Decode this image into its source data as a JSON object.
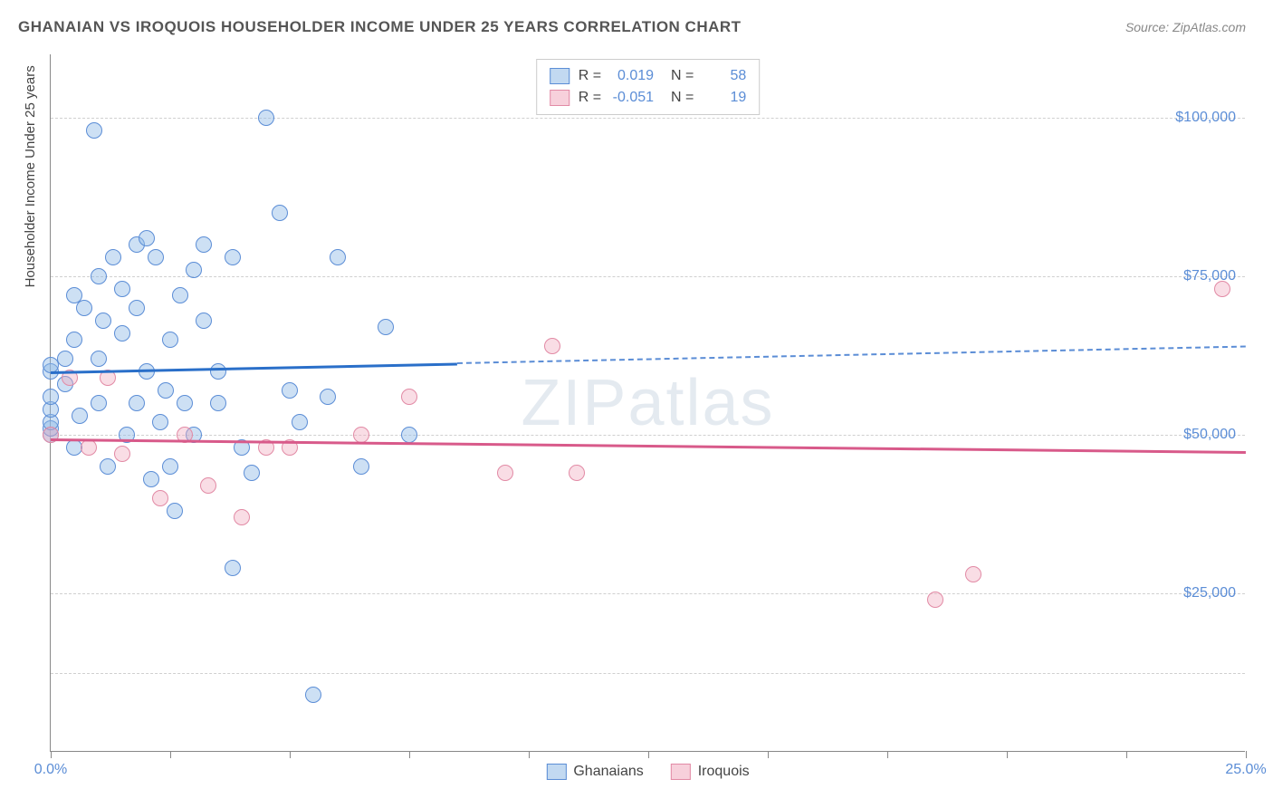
{
  "title": "GHANAIAN VS IROQUOIS HOUSEHOLDER INCOME UNDER 25 YEARS CORRELATION CHART",
  "source": "Source: ZipAtlas.com",
  "watermark": "ZIPatlas",
  "y_axis_title": "Householder Income Under 25 years",
  "chart": {
    "type": "scatter",
    "background_color": "#ffffff",
    "grid_color": "#d0d0d0",
    "axis_color": "#888888",
    "xlim": [
      0,
      25
    ],
    "ylim": [
      0,
      110000
    ],
    "x_ticks": [
      0,
      2.5,
      5,
      7.5,
      10,
      12.5,
      15,
      17.5,
      20,
      22.5,
      25
    ],
    "x_tick_labels": {
      "0": "0.0%",
      "25": "25.0%"
    },
    "y_gridlines": [
      12500,
      25000,
      50000,
      75000,
      100000
    ],
    "y_tick_labels": {
      "25000": "$25,000",
      "50000": "$50,000",
      "75000": "$75,000",
      "100000": "$100,000"
    },
    "marker_radius": 9,
    "series": [
      {
        "name": "Ghanaians",
        "fill_color": "rgba(144,186,230,0.45)",
        "stroke_color": "#5b8dd6",
        "line_color": "#2a6fc9",
        "R": "0.019",
        "N": "58",
        "trend": {
          "x1": 0,
          "y1": 60000,
          "x_solid_end": 8.5,
          "x2": 25,
          "y2": 64000
        },
        "points": [
          [
            0.0,
            50000
          ],
          [
            0.0,
            51000
          ],
          [
            0.0,
            52000
          ],
          [
            0.0,
            54000
          ],
          [
            0.0,
            56000
          ],
          [
            0.0,
            60000
          ],
          [
            0.0,
            61000
          ],
          [
            0.3,
            58000
          ],
          [
            0.3,
            62000
          ],
          [
            0.5,
            48000
          ],
          [
            0.5,
            72000
          ],
          [
            0.5,
            65000
          ],
          [
            0.6,
            53000
          ],
          [
            0.7,
            70000
          ],
          [
            0.9,
            98000
          ],
          [
            1.0,
            75000
          ],
          [
            1.0,
            55000
          ],
          [
            1.0,
            62000
          ],
          [
            1.1,
            68000
          ],
          [
            1.2,
            45000
          ],
          [
            1.3,
            78000
          ],
          [
            1.5,
            73000
          ],
          [
            1.5,
            66000
          ],
          [
            1.6,
            50000
          ],
          [
            1.8,
            70000
          ],
          [
            1.8,
            80000
          ],
          [
            1.8,
            55000
          ],
          [
            2.0,
            81000
          ],
          [
            2.0,
            60000
          ],
          [
            2.1,
            43000
          ],
          [
            2.2,
            78000
          ],
          [
            2.3,
            52000
          ],
          [
            2.4,
            57000
          ],
          [
            2.5,
            65000
          ],
          [
            2.5,
            45000
          ],
          [
            2.6,
            38000
          ],
          [
            2.7,
            72000
          ],
          [
            2.8,
            55000
          ],
          [
            3.0,
            76000
          ],
          [
            3.0,
            50000
          ],
          [
            3.2,
            80000
          ],
          [
            3.2,
            68000
          ],
          [
            3.5,
            60000
          ],
          [
            3.5,
            55000
          ],
          [
            3.8,
            78000
          ],
          [
            3.8,
            29000
          ],
          [
            4.0,
            48000
          ],
          [
            4.2,
            44000
          ],
          [
            4.5,
            100000
          ],
          [
            4.8,
            85000
          ],
          [
            5.0,
            57000
          ],
          [
            5.2,
            52000
          ],
          [
            5.5,
            9000
          ],
          [
            5.8,
            56000
          ],
          [
            6.0,
            78000
          ],
          [
            6.5,
            45000
          ],
          [
            7.0,
            67000
          ],
          [
            7.5,
            50000
          ]
        ]
      },
      {
        "name": "Iroquois",
        "fill_color": "rgba(240,170,190,0.40)",
        "stroke_color": "#e28aa5",
        "line_color": "#d85a8a",
        "R": "-0.051",
        "N": "19",
        "trend": {
          "x1": 0,
          "y1": 49500,
          "x_solid_end": 25,
          "x2": 25,
          "y2": 47500
        },
        "points": [
          [
            0.0,
            50000
          ],
          [
            0.4,
            59000
          ],
          [
            0.8,
            48000
          ],
          [
            1.2,
            59000
          ],
          [
            1.5,
            47000
          ],
          [
            2.3,
            40000
          ],
          [
            2.8,
            50000
          ],
          [
            3.3,
            42000
          ],
          [
            4.0,
            37000
          ],
          [
            4.5,
            48000
          ],
          [
            5.0,
            48000
          ],
          [
            6.5,
            50000
          ],
          [
            7.5,
            56000
          ],
          [
            9.5,
            44000
          ],
          [
            10.5,
            64000
          ],
          [
            11.0,
            44000
          ],
          [
            18.5,
            24000
          ],
          [
            19.3,
            28000
          ],
          [
            24.5,
            73000
          ]
        ]
      }
    ]
  }
}
